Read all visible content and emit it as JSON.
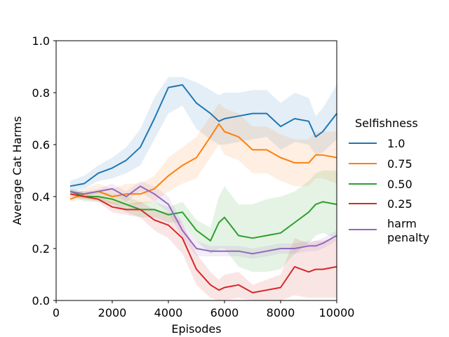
{
  "chart_data": {
    "type": "line",
    "xlabel": "Episodes",
    "ylabel": "Average Cat Harms",
    "xlim": [
      0,
      10000
    ],
    "ylim": [
      0,
      1.0
    ],
    "x_ticks": [
      0,
      2000,
      4000,
      6000,
      8000,
      10000
    ],
    "x_tick_labels": [
      "0",
      "2000",
      "4000",
      "6000",
      "8000",
      "10000"
    ],
    "y_ticks": [
      0,
      0.2,
      0.4,
      0.6,
      0.8,
      1.0
    ],
    "y_tick_labels": [
      "0.0",
      "0.2",
      "0.4",
      "0.6",
      "0.8",
      "1.0"
    ],
    "grid": false,
    "legend": {
      "title": "Selfishness",
      "placement": "right-outside"
    },
    "x": [
      500,
      1000,
      1500,
      2000,
      2500,
      3000,
      3500,
      4000,
      4500,
      5000,
      5500,
      5800,
      6000,
      6500,
      7000,
      7500,
      8000,
      8500,
      9000,
      9250,
      9500,
      10000
    ],
    "series": [
      {
        "name": "1.0",
        "color": "#1f77b4",
        "values": [
          0.44,
          0.45,
          0.49,
          0.51,
          0.54,
          0.59,
          0.7,
          0.82,
          0.83,
          0.76,
          0.72,
          0.69,
          0.7,
          0.71,
          0.72,
          0.72,
          0.67,
          0.7,
          0.69,
          0.63,
          0.65,
          0.72
        ],
        "band_lower": [
          0.42,
          0.43,
          0.46,
          0.47,
          0.49,
          0.52,
          0.62,
          0.72,
          0.75,
          0.66,
          0.62,
          0.6,
          0.6,
          0.61,
          0.62,
          0.63,
          0.58,
          0.61,
          0.6,
          0.56,
          0.57,
          0.62
        ],
        "band_upper": [
          0.46,
          0.48,
          0.52,
          0.55,
          0.59,
          0.66,
          0.78,
          0.86,
          0.86,
          0.84,
          0.81,
          0.79,
          0.8,
          0.8,
          0.81,
          0.81,
          0.76,
          0.8,
          0.78,
          0.71,
          0.74,
          0.83
        ]
      },
      {
        "name": "0.75",
        "color": "#ff7f0e",
        "values": [
          0.39,
          0.41,
          0.42,
          0.4,
          0.41,
          0.41,
          0.43,
          0.48,
          0.52,
          0.55,
          0.63,
          0.68,
          0.65,
          0.63,
          0.58,
          0.58,
          0.55,
          0.53,
          0.53,
          0.56,
          0.56,
          0.55
        ],
        "band_lower": [
          0.38,
          0.39,
          0.39,
          0.37,
          0.37,
          0.37,
          0.38,
          0.42,
          0.45,
          0.47,
          0.55,
          0.6,
          0.56,
          0.54,
          0.49,
          0.49,
          0.46,
          0.44,
          0.44,
          0.47,
          0.47,
          0.45
        ],
        "band_upper": [
          0.4,
          0.43,
          0.45,
          0.43,
          0.45,
          0.45,
          0.48,
          0.55,
          0.59,
          0.63,
          0.71,
          0.76,
          0.74,
          0.72,
          0.67,
          0.67,
          0.64,
          0.62,
          0.62,
          0.65,
          0.65,
          0.65
        ]
      },
      {
        "name": "0.50",
        "color": "#2ca02c",
        "values": [
          0.42,
          0.4,
          0.4,
          0.39,
          0.37,
          0.35,
          0.35,
          0.33,
          0.34,
          0.27,
          0.23,
          0.3,
          0.32,
          0.25,
          0.24,
          0.25,
          0.26,
          0.3,
          0.34,
          0.37,
          0.38,
          0.37
        ],
        "band_lower": [
          0.41,
          0.38,
          0.38,
          0.37,
          0.34,
          0.32,
          0.32,
          0.3,
          0.3,
          0.23,
          0.18,
          0.2,
          0.2,
          0.13,
          0.11,
          0.11,
          0.12,
          0.18,
          0.22,
          0.25,
          0.26,
          0.24
        ],
        "band_upper": [
          0.43,
          0.42,
          0.42,
          0.41,
          0.4,
          0.38,
          0.38,
          0.36,
          0.38,
          0.31,
          0.28,
          0.4,
          0.44,
          0.37,
          0.37,
          0.39,
          0.4,
          0.42,
          0.46,
          0.49,
          0.5,
          0.5
        ]
      },
      {
        "name": "0.25",
        "color": "#d62728",
        "values": [
          0.41,
          0.4,
          0.39,
          0.36,
          0.35,
          0.35,
          0.31,
          0.29,
          0.24,
          0.12,
          0.06,
          0.04,
          0.05,
          0.06,
          0.03,
          0.04,
          0.05,
          0.13,
          0.11,
          0.12,
          0.12,
          0.13
        ],
        "band_lower": [
          0.4,
          0.39,
          0.38,
          0.34,
          0.33,
          0.32,
          0.27,
          0.24,
          0.18,
          0.06,
          0.01,
          0.0,
          0.0,
          0.01,
          0.0,
          0.0,
          0.0,
          0.02,
          0.01,
          0.01,
          0.01,
          0.01
        ],
        "band_upper": [
          0.42,
          0.41,
          0.4,
          0.38,
          0.37,
          0.38,
          0.35,
          0.34,
          0.3,
          0.18,
          0.11,
          0.08,
          0.1,
          0.11,
          0.06,
          0.08,
          0.1,
          0.24,
          0.22,
          0.23,
          0.23,
          0.24
        ]
      },
      {
        "name": "harm penalty",
        "color": "#9467bd",
        "values": [
          0.42,
          0.41,
          0.42,
          0.43,
          0.4,
          0.44,
          0.41,
          0.37,
          0.27,
          0.2,
          0.19,
          0.19,
          0.19,
          0.19,
          0.18,
          0.19,
          0.2,
          0.2,
          0.21,
          0.21,
          0.22,
          0.25
        ],
        "band_lower": [
          0.41,
          0.4,
          0.41,
          0.41,
          0.38,
          0.42,
          0.38,
          0.34,
          0.24,
          0.17,
          0.17,
          0.17,
          0.17,
          0.17,
          0.16,
          0.17,
          0.18,
          0.18,
          0.19,
          0.19,
          0.2,
          0.23
        ],
        "band_upper": [
          0.43,
          0.42,
          0.43,
          0.45,
          0.42,
          0.46,
          0.44,
          0.4,
          0.3,
          0.23,
          0.21,
          0.21,
          0.21,
          0.21,
          0.2,
          0.21,
          0.22,
          0.22,
          0.23,
          0.23,
          0.24,
          0.27
        ]
      }
    ]
  }
}
